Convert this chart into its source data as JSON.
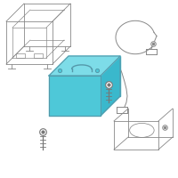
{
  "bg_color": "#ffffff",
  "line_color": "#777777",
  "battery_fill": "#4ec8d8",
  "battery_stroke": "#5599aa",
  "battery_top_fill": "#7ddce8",
  "battery_side_fill": "#3ab8cc",
  "tray_color": "#888888",
  "ring_color": "#888888"
}
